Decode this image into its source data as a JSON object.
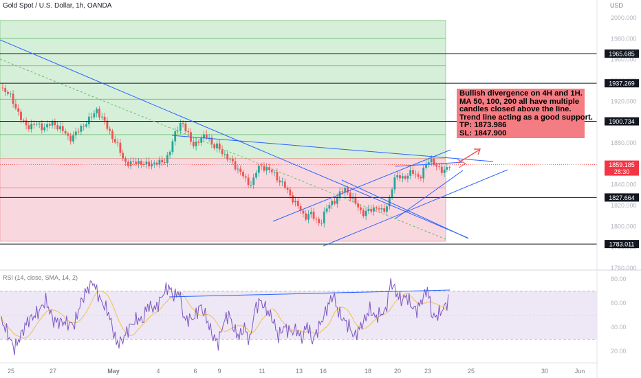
{
  "header": {
    "symbol_title": "Gold Spot / U.S. Dollar, 1h, OANDA",
    "currency": "USD"
  },
  "rsi": {
    "title": "RSI (14, close, SMA, 14, 2)",
    "ticks": [
      "80.00",
      "60.00",
      "40.00",
      "20.00"
    ]
  },
  "annotation": {
    "lines": [
      "Bullish divergence on 4H and 1H.",
      "MA 50, 100, 200 all have multiple",
      "candles closed above the line.",
      "Trend line acting as a good support.",
      "TP: 1873.986",
      "SL: 1847.900"
    ],
    "background": "#f47c83"
  },
  "colors": {
    "bull": "#26a69a",
    "bear": "#ef5350",
    "trendline": "#2962ff",
    "green_zone": "#d6efd9",
    "red_zone": "#f9d7df",
    "rsi_band": "#ede7f6",
    "rsi_line": "#7e57c2",
    "rsi_ma": "#f5c04a"
  },
  "chart_data": {
    "type": "candlestick",
    "title": "Gold Spot / U.S. Dollar, 1h, OANDA",
    "y_unit": "USD",
    "ylim": [
      1760,
      2000
    ],
    "y_ticks": [
      2000,
      1980,
      1960,
      1940,
      1920,
      1900,
      1880,
      1860,
      1840,
      1820,
      1800,
      1780,
      1760
    ],
    "x_ticks": [
      "25",
      "27",
      "May",
      "4",
      "6",
      "9",
      "11",
      "13",
      "16",
      "18",
      "20",
      "23",
      "25",
      "30",
      "Jun"
    ],
    "grid": false,
    "price_path": [
      [
        0,
        1933
      ],
      [
        4,
        1923
      ],
      [
        8,
        1900
      ],
      [
        10,
        1896
      ],
      [
        13,
        1898
      ],
      [
        16,
        1895
      ],
      [
        20,
        1899
      ],
      [
        23,
        1893
      ],
      [
        26,
        1884
      ],
      [
        29,
        1890
      ],
      [
        32,
        1899
      ],
      [
        35,
        1906
      ],
      [
        36.5,
        1912
      ],
      [
        39,
        1902
      ],
      [
        41,
        1892
      ],
      [
        44,
        1880
      ],
      [
        47,
        1862
      ],
      [
        50,
        1860
      ],
      [
        53,
        1862
      ],
      [
        56,
        1858
      ],
      [
        59,
        1862
      ],
      [
        62,
        1860
      ],
      [
        64,
        1870
      ],
      [
        66,
        1885
      ],
      [
        69,
        1902
      ],
      [
        71,
        1890
      ],
      [
        73,
        1878
      ],
      [
        76,
        1883
      ],
      [
        79,
        1888
      ],
      [
        81,
        1876
      ],
      [
        83,
        1876
      ],
      [
        86,
        1867
      ],
      [
        89,
        1859
      ],
      [
        92,
        1851
      ],
      [
        94,
        1841
      ],
      [
        96,
        1842
      ],
      [
        98,
        1856
      ],
      [
        101,
        1857
      ],
      [
        104,
        1851
      ],
      [
        106,
        1845
      ],
      [
        108,
        1840
      ],
      [
        110,
        1831
      ],
      [
        112,
        1825
      ],
      [
        114,
        1817
      ],
      [
        116,
        1808
      ],
      [
        118,
        1814
      ],
      [
        120,
        1806
      ],
      [
        122,
        1803
      ],
      [
        124,
        1815
      ],
      [
        126,
        1822
      ],
      [
        128,
        1826
      ],
      [
        130,
        1833
      ],
      [
        132,
        1836
      ],
      [
        134,
        1827
      ],
      [
        136,
        1820
      ],
      [
        138,
        1813
      ],
      [
        140,
        1814
      ],
      [
        142,
        1816
      ],
      [
        144,
        1820
      ],
      [
        146,
        1812
      ],
      [
        148,
        1822
      ],
      [
        150,
        1844
      ],
      [
        152,
        1848
      ],
      [
        154,
        1847
      ],
      [
        156,
        1850
      ],
      [
        158,
        1852
      ],
      [
        160,
        1846
      ],
      [
        162,
        1856
      ],
      [
        164,
        1866
      ],
      [
        166,
        1859
      ],
      [
        168,
        1852
      ],
      [
        170,
        1856
      ],
      [
        172,
        1859
      ]
    ],
    "horizontal_levels": [
      1965.685,
      1937.269,
      1900.734,
      1827.664,
      1783.011
    ],
    "current_price": "1859.185",
    "countdown": "28:30",
    "annotation_targets": {
      "tp": "1873.986",
      "sl": "1847.900"
    },
    "rsi": {
      "ylim": [
        10,
        84
      ],
      "band": [
        30,
        70
      ],
      "mid": 50,
      "path": [
        [
          0,
          46
        ],
        [
          5,
          22
        ],
        [
          10,
          45
        ],
        [
          14,
          52
        ],
        [
          17,
          62
        ],
        [
          20,
          45
        ],
        [
          24,
          44
        ],
        [
          28,
          42
        ],
        [
          30,
          58
        ],
        [
          32,
          68
        ],
        [
          35,
          78
        ],
        [
          38,
          62
        ],
        [
          41,
          52
        ],
        [
          44,
          27
        ],
        [
          46,
          28
        ],
        [
          49,
          40
        ],
        [
          52,
          47
        ],
        [
          54,
          45
        ],
        [
          56,
          58
        ],
        [
          59,
          55
        ],
        [
          62,
          68
        ],
        [
          64,
          74
        ],
        [
          66,
          65
        ],
        [
          68,
          70
        ],
        [
          70,
          46
        ],
        [
          72,
          47
        ],
        [
          74,
          48
        ],
        [
          76,
          58
        ],
        [
          78,
          50
        ],
        [
          81,
          32
        ],
        [
          83,
          27
        ],
        [
          85,
          44
        ],
        [
          87,
          51
        ],
        [
          89,
          38
        ],
        [
          91,
          32
        ],
        [
          93,
          40
        ],
        [
          95,
          28
        ],
        [
          97,
          55
        ],
        [
          99,
          62
        ],
        [
          101,
          56
        ],
        [
          104,
          46
        ],
        [
          106,
          32
        ],
        [
          108,
          40
        ],
        [
          111,
          36
        ],
        [
          113,
          38
        ],
        [
          115,
          30
        ],
        [
          117,
          43
        ],
        [
          119,
          28
        ],
        [
          121,
          38
        ],
        [
          123,
          47
        ],
        [
          125,
          58
        ],
        [
          127,
          67
        ],
        [
          129,
          52
        ],
        [
          131,
          46
        ],
        [
          133,
          41
        ],
        [
          135,
          32
        ],
        [
          137,
          39
        ],
        [
          139,
          46
        ],
        [
          141,
          55
        ],
        [
          143,
          48
        ],
        [
          145,
          51
        ],
        [
          147,
          53
        ],
        [
          149,
          78
        ],
        [
          151,
          69
        ],
        [
          153,
          62
        ],
        [
          155,
          66
        ],
        [
          157,
          57
        ],
        [
          159,
          54
        ],
        [
          161,
          63
        ],
        [
          163,
          72
        ],
        [
          165,
          48
        ],
        [
          167,
          50
        ],
        [
          169,
          55
        ],
        [
          171,
          62
        ]
      ]
    }
  }
}
